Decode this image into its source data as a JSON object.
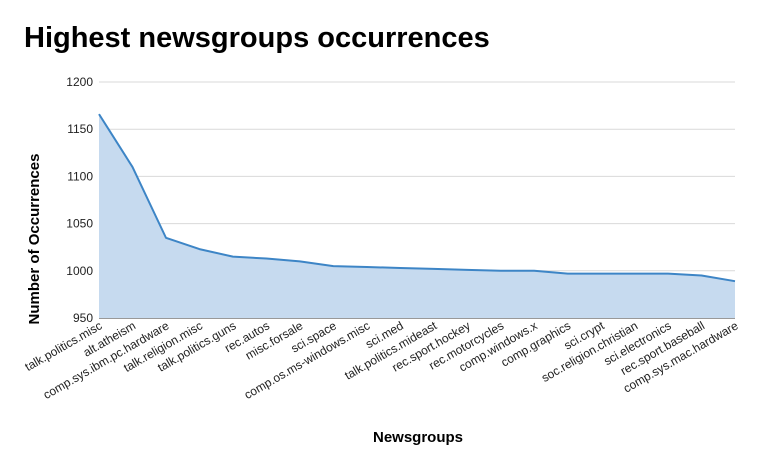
{
  "chart_data": {
    "type": "area",
    "title": "Highest newsgroups occurrences",
    "xlabel": "Newsgroups",
    "ylabel": "Number of Occurrences",
    "ylim": [
      950,
      1200
    ],
    "yticks": [
      950,
      1000,
      1050,
      1100,
      1150,
      1200
    ],
    "categories": [
      "talk.politics.misc",
      "alt.atheism",
      "comp.sys.ibm.pc.hardware",
      "talk.religion.misc",
      "talk.politics.guns",
      "rec.autos",
      "misc.forsale",
      "sci.space",
      "comp.os.ms-windows.misc",
      "sci.med",
      "talk.politics.mideast",
      "rec.sport.hockey",
      "rec.motorcycles",
      "comp.windows.x",
      "comp.graphics",
      "sci.crypt",
      "soc.religion.christian",
      "sci.electronics",
      "rec.sport.baseball",
      "comp.sys.mac.hardware"
    ],
    "values": [
      1166,
      1110,
      1035,
      1023,
      1015,
      1013,
      1010,
      1005,
      1004,
      1003,
      1002,
      1001,
      1000,
      1000,
      997,
      997,
      997,
      997,
      995,
      989
    ],
    "grid": true,
    "colors": {
      "line": "#3d85c6",
      "fill": "#c6daef",
      "grid": "#d9d9d9"
    }
  }
}
